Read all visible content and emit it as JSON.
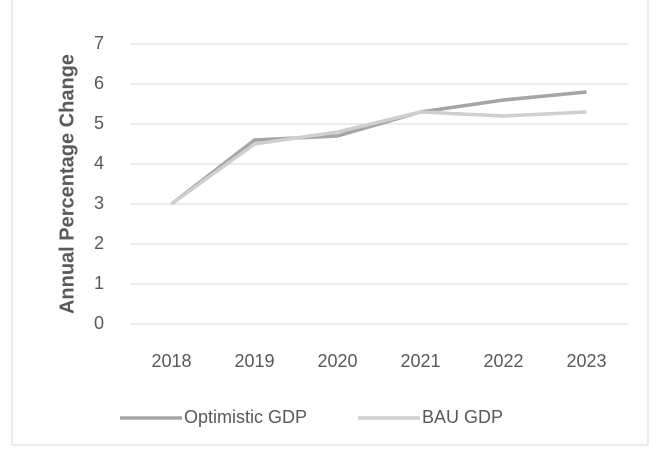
{
  "chart_data": {
    "type": "line",
    "y_label": "Annual Percentage Change",
    "categories": [
      "2018",
      "2019",
      "2020",
      "2021",
      "2022",
      "2023"
    ],
    "series": [
      {
        "name": "Optimistic GDP",
        "color": "#a5a5a5",
        "values": [
          3,
          4.6,
          4.7,
          5.3,
          5.6,
          5.8
        ]
      },
      {
        "name": "BAU GDP",
        "color": "#cfcfcf",
        "values": [
          3,
          4.5,
          4.8,
          5.3,
          5.2,
          5.3
        ]
      }
    ],
    "ylim": [
      0,
      7
    ],
    "yticks": [
      0,
      1,
      2,
      3,
      4,
      5,
      6,
      7
    ],
    "grid": true,
    "legend": "bottom"
  }
}
